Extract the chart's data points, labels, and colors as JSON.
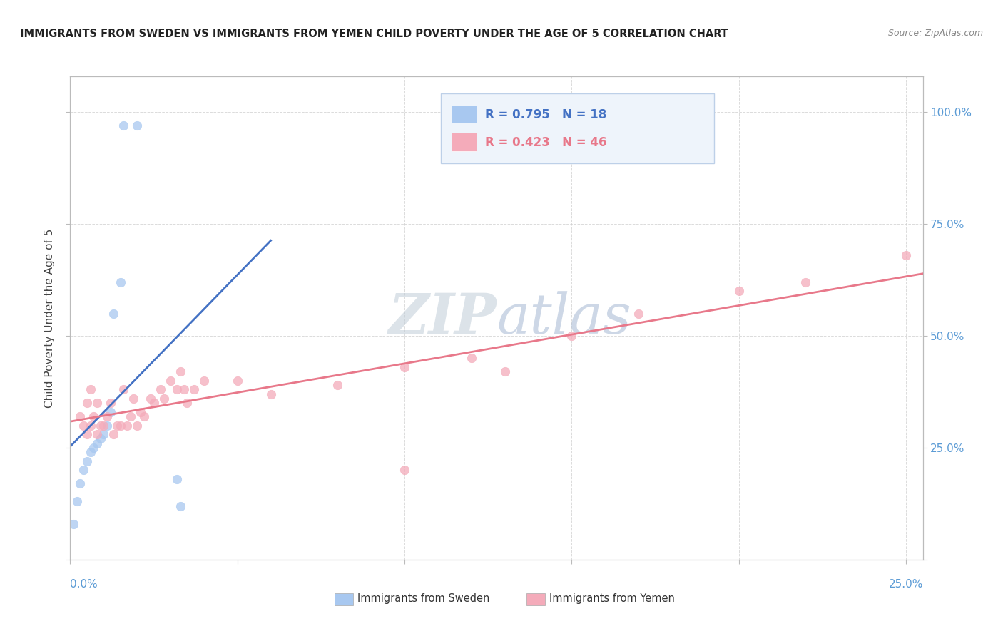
{
  "title": "IMMIGRANTS FROM SWEDEN VS IMMIGRANTS FROM YEMEN CHILD POVERTY UNDER THE AGE OF 5 CORRELATION CHART",
  "source": "Source: ZipAtlas.com",
  "ylabel": "Child Poverty Under the Age of 5",
  "xlim": [
    0.0,
    0.255
  ],
  "ylim": [
    0.0,
    1.08
  ],
  "sweden_R": 0.795,
  "sweden_N": 18,
  "yemen_R": 0.423,
  "yemen_N": 46,
  "sweden_color": "#A8C8F0",
  "yemen_color": "#F4ABBA",
  "sweden_line_color": "#4472C4",
  "yemen_line_color": "#E8788A",
  "background_color": "#FFFFFF",
  "grid_color": "#CCCCCC",
  "watermark_color": "#C8D8EC",
  "sweden_x": [
    0.001,
    0.002,
    0.003,
    0.004,
    0.005,
    0.006,
    0.007,
    0.008,
    0.009,
    0.01,
    0.011,
    0.012,
    0.013,
    0.015,
    0.016,
    0.02,
    0.032,
    0.033
  ],
  "sweden_y": [
    0.08,
    0.13,
    0.17,
    0.2,
    0.22,
    0.24,
    0.25,
    0.26,
    0.27,
    0.28,
    0.3,
    0.33,
    0.55,
    0.62,
    0.97,
    0.97,
    0.18,
    0.12
  ],
  "yemen_x": [
    0.003,
    0.004,
    0.005,
    0.005,
    0.006,
    0.006,
    0.007,
    0.008,
    0.008,
    0.009,
    0.01,
    0.011,
    0.012,
    0.013,
    0.014,
    0.015,
    0.016,
    0.017,
    0.018,
    0.019,
    0.02,
    0.021,
    0.022,
    0.024,
    0.025,
    0.027,
    0.028,
    0.03,
    0.032,
    0.033,
    0.034,
    0.035,
    0.037,
    0.04,
    0.05,
    0.06,
    0.08,
    0.1,
    0.12,
    0.15,
    0.17,
    0.2,
    0.22,
    0.25,
    0.1,
    0.13
  ],
  "yemen_y": [
    0.32,
    0.3,
    0.28,
    0.35,
    0.3,
    0.38,
    0.32,
    0.28,
    0.35,
    0.3,
    0.3,
    0.32,
    0.35,
    0.28,
    0.3,
    0.3,
    0.38,
    0.3,
    0.32,
    0.36,
    0.3,
    0.33,
    0.32,
    0.36,
    0.35,
    0.38,
    0.36,
    0.4,
    0.38,
    0.42,
    0.38,
    0.35,
    0.38,
    0.4,
    0.4,
    0.37,
    0.39,
    0.43,
    0.45,
    0.5,
    0.55,
    0.6,
    0.62,
    0.68,
    0.2,
    0.42
  ],
  "tick_label_color": "#5B9BD5",
  "axis_color": "#BBBBBB"
}
